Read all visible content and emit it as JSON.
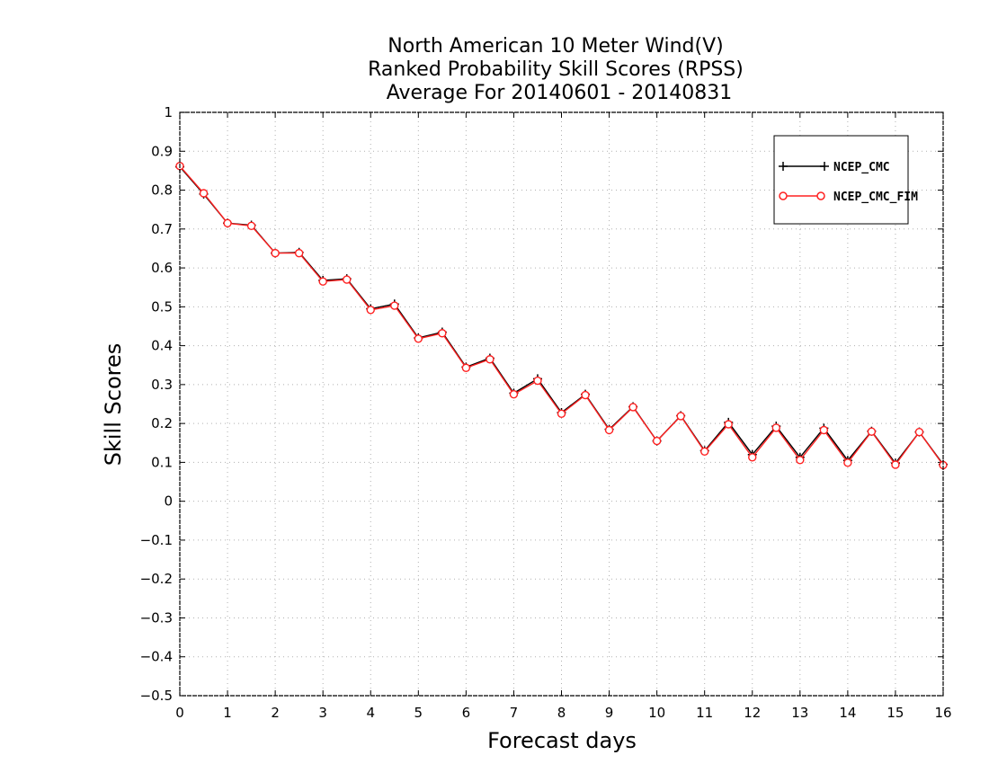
{
  "chart_data": {
    "type": "line",
    "title_lines": [
      "North American 10 Meter Wind(V)",
      "Ranked Probability Skill Scores (RPSS)",
      "Average For 20140601 - 20140831"
    ],
    "xlabel": "Forecast days",
    "ylabel": "Skill Scores",
    "xlim": [
      0,
      16
    ],
    "ylim": [
      -0.5,
      1
    ],
    "x_ticks": [
      "0",
      "1",
      "2",
      "3",
      "4",
      "5",
      "6",
      "7",
      "8",
      "9",
      "10",
      "11",
      "12",
      "13",
      "14",
      "15",
      "16"
    ],
    "y_ticks": [
      "1",
      "0.9",
      "0.8",
      "0.7",
      "0.6",
      "0.5",
      "0.4",
      "0.3",
      "0.2",
      "0.1",
      "0",
      "−0.1",
      "−0.2",
      "−0.3",
      "−0.4",
      "−0.5"
    ],
    "grid": true,
    "legend_position": "top-right",
    "x": [
      0,
      0.5,
      1,
      1.5,
      2,
      2.5,
      3,
      3.5,
      4,
      4.5,
      5,
      5.5,
      6,
      6.5,
      7,
      7.5,
      8,
      8.5,
      9,
      9.5,
      10,
      10.5,
      11,
      11.5,
      12,
      12.5,
      13,
      13.5,
      14,
      14.5,
      15,
      15.5,
      16
    ],
    "series": [
      {
        "name": "NCEP_CMC",
        "color": "#000000",
        "marker": "plus",
        "values": [
          0.86,
          0.79,
          0.715,
          0.71,
          0.638,
          0.64,
          0.568,
          0.572,
          0.495,
          0.507,
          0.42,
          0.435,
          0.345,
          0.368,
          0.278,
          0.315,
          0.228,
          0.275,
          0.185,
          0.243,
          0.155,
          0.22,
          0.13,
          0.203,
          0.12,
          0.193,
          0.113,
          0.188,
          0.105,
          0.18,
          0.098,
          0.178,
          0.095
        ]
      },
      {
        "name": "NCEP_CMC_FIM",
        "color": "#ff2020",
        "marker": "circle",
        "values": [
          0.862,
          0.792,
          0.715,
          0.708,
          0.638,
          0.638,
          0.565,
          0.57,
          0.492,
          0.503,
          0.418,
          0.432,
          0.343,
          0.365,
          0.275,
          0.31,
          0.225,
          0.273,
          0.183,
          0.242,
          0.155,
          0.219,
          0.128,
          0.198,
          0.113,
          0.189,
          0.106,
          0.183,
          0.099,
          0.179,
          0.094,
          0.178,
          0.093
        ]
      }
    ]
  }
}
